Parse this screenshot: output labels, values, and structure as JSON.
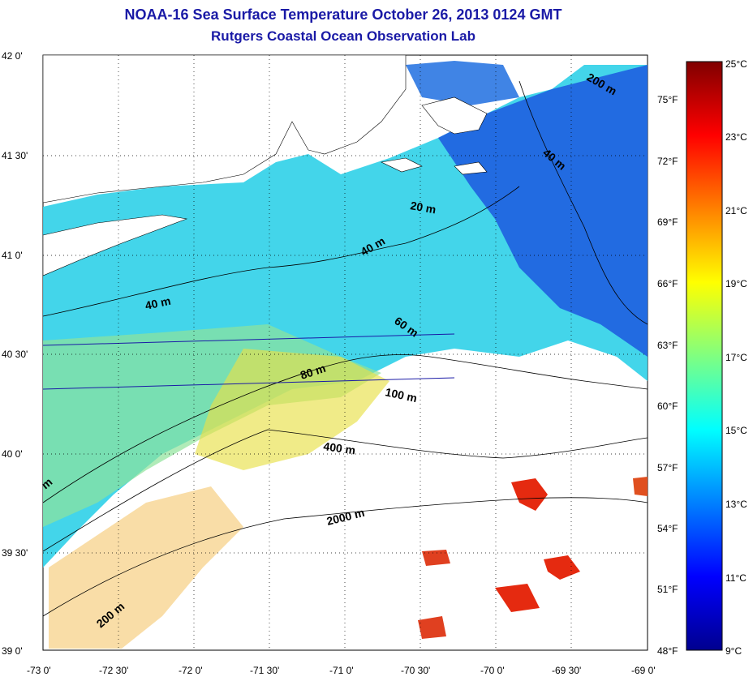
{
  "title": {
    "line1": "NOAA-16 Sea Surface Temperature October 26, 2013 0124 GMT",
    "line2": "Rutgers Coastal Ocean Observation Lab"
  },
  "map": {
    "lat_ticks": [
      "42 0'",
      "41 30'",
      "41 0'",
      "40 30'",
      "40 0'",
      "39 30'",
      "39 0'"
    ],
    "lon_ticks": [
      "-73 0'",
      "-72 30'",
      "-72 0'",
      "-71 30'",
      "-71 0'",
      "-70 30'",
      "-70 0'",
      "-69 30'",
      "-69 0'"
    ],
    "depth_labels": [
      "20 m",
      "40 m",
      "40 m",
      "40 m",
      "60 m",
      "80 m",
      "100 m",
      "400 m",
      "2000 m",
      "200 m",
      "200 m",
      "m"
    ]
  },
  "colorbar": {
    "celsius": [
      "25°C",
      "23°C",
      "21°C",
      "19°C",
      "17°C",
      "15°C",
      "13°C",
      "11°C",
      "9°C"
    ],
    "fahrenheit": [
      "75°F",
      "72°F",
      "69°F",
      "66°F",
      "63°F",
      "60°F",
      "57°F",
      "54°F",
      "51°F",
      "48°F"
    ],
    "colors": [
      "#00008f",
      "#0000ff",
      "#0080ff",
      "#00ffff",
      "#80ff80",
      "#ffff00",
      "#ff8000",
      "#ff0000",
      "#800000"
    ],
    "min_c": 9,
    "max_c": 25
  },
  "colors": {
    "title": "#1a1aa6",
    "land": "#ffffff",
    "water_cool": "#1e6fe0",
    "water_mid": "#2fd6e6",
    "water_warm": "#d6e63c"
  }
}
